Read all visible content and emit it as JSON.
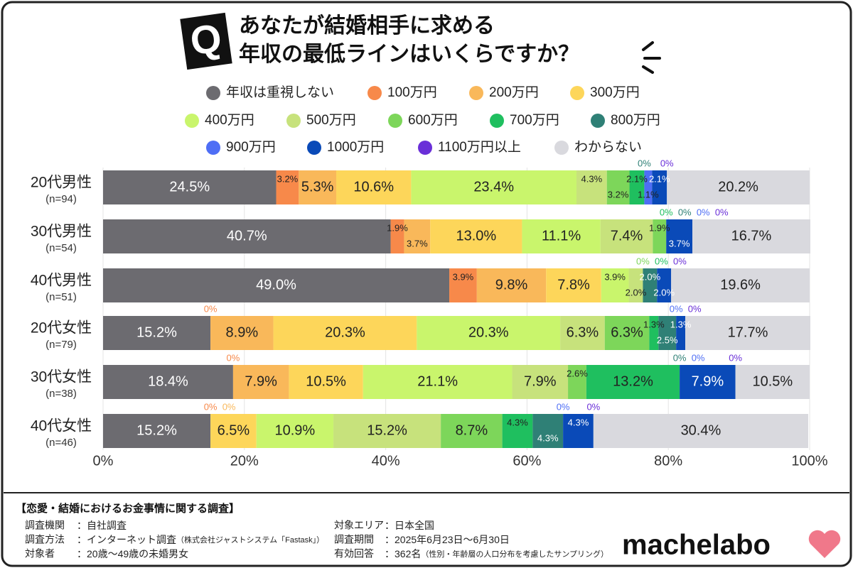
{
  "chart_data": {
    "type": "stacked-bar",
    "orientation": "horizontal",
    "badge": "Q",
    "title": [
      "あなたが結婚相手に求める",
      "年収の最低ラインはいくらですか？"
    ],
    "categories": [
      "20代男性",
      "30代男性",
      "40代男性",
      "20代女性",
      "30代女性",
      "40代女性"
    ],
    "category_notes": [
      "(n=94)",
      "(n=54)",
      "(n=51)",
      "(n=79)",
      "(n=38)",
      "(n=46)"
    ],
    "xlim": [
      0,
      100
    ],
    "xticks": [
      {
        "value": 0,
        "label": "0%"
      },
      {
        "value": 20,
        "label": "20%"
      },
      {
        "value": 40,
        "label": "40%"
      },
      {
        "value": 60,
        "label": "60%"
      },
      {
        "value": 80,
        "label": "80%"
      },
      {
        "value": 100,
        "label": "100%"
      }
    ],
    "grid": true,
    "series": [
      {
        "name": "年収は重視しない",
        "color": "#6c6b70",
        "values": [
          24.5,
          40.7,
          49.0,
          15.2,
          18.4,
          15.2
        ],
        "value_labels": [
          "24.5%",
          "40.7%",
          "49.0%",
          "15.2%",
          "18.4%",
          "15.2%"
        ]
      },
      {
        "name": "100万円",
        "color": "#f7894a",
        "values": [
          3.2,
          1.9,
          3.9,
          0,
          0,
          0
        ],
        "value_labels": [
          "3.2%",
          "1.9%",
          "3.9%",
          "0%",
          "0%",
          "0%"
        ]
      },
      {
        "name": "200万円",
        "color": "#f9b85a",
        "values": [
          5.3,
          3.7,
          9.8,
          8.9,
          7.9,
          0
        ],
        "value_labels": [
          "5.3%",
          "3.7%",
          "9.8%",
          "8.9%",
          "7.9%",
          "0%"
        ]
      },
      {
        "name": "300万円",
        "color": "#fdd65a",
        "values": [
          10.6,
          13.0,
          7.8,
          20.3,
          10.5,
          6.5
        ],
        "value_labels": [
          "10.6%",
          "13.0%",
          "7.8%",
          "20.3%",
          "10.5%",
          "6.5%"
        ]
      },
      {
        "name": "400万円",
        "color": "#c9f56c",
        "values": [
          23.4,
          11.1,
          3.9,
          20.3,
          21.1,
          10.9
        ],
        "value_labels": [
          "23.4%",
          "11.1%",
          "3.9%",
          "20.3%",
          "21.1%",
          "10.9%"
        ]
      },
      {
        "name": "500万円",
        "color": "#c7e27c",
        "values": [
          4.3,
          7.4,
          2.0,
          6.3,
          7.9,
          15.2
        ],
        "value_labels": [
          "4.3%",
          "7.4%",
          "2.0%",
          "6.3%",
          "7.9%",
          "15.2%"
        ]
      },
      {
        "name": "600万円",
        "color": "#7dd65a",
        "values": [
          3.2,
          1.9,
          0,
          6.3,
          2.6,
          8.7
        ],
        "value_labels": [
          "3.2%",
          "1.9%",
          "0%",
          "6.3%",
          "2.6%",
          "8.7%"
        ]
      },
      {
        "name": "700万円",
        "color": "#1fbf5f",
        "values": [
          2.1,
          0,
          0,
          1.3,
          13.2,
          4.3
        ],
        "value_labels": [
          "2.1%",
          "0%",
          "0%",
          "1.3%",
          "13.2%",
          "4.3%"
        ]
      },
      {
        "name": "800万円",
        "color": "#2f8076",
        "values": [
          0,
          0,
          2.0,
          2.5,
          0,
          4.3
        ],
        "value_labels": [
          "0%",
          "0%",
          "2.0%",
          "2.5%",
          "0%",
          "4.3%"
        ]
      },
      {
        "name": "900万円",
        "color": "#4e6ef5",
        "values": [
          1.1,
          0,
          0,
          0,
          0,
          0
        ],
        "value_labels": [
          "1.1%",
          "0%",
          null,
          "0%",
          "0%",
          "0%"
        ]
      },
      {
        "name": "1000万円",
        "color": "#0a4ab8",
        "values": [
          2.1,
          3.7,
          2.0,
          1.3,
          7.9,
          4.3
        ],
        "value_labels": [
          "2.1%",
          "3.7%",
          "2.0%",
          "1.3%",
          "7.9%",
          "4.3%"
        ]
      },
      {
        "name": "1100万円以上",
        "color": "#6a2fd8",
        "values": [
          0,
          0,
          0,
          0,
          0,
          0
        ],
        "value_labels": [
          "0%",
          "0%",
          "0%",
          "0%",
          "0%",
          "0%"
        ]
      },
      {
        "name": "わからない",
        "color": "#d9d9de",
        "values": [
          20.2,
          16.7,
          19.6,
          17.7,
          10.5,
          30.4
        ],
        "value_labels": [
          "20.2%",
          "16.7%",
          "19.6%",
          "17.7%",
          "10.5%",
          "30.4%"
        ]
      }
    ]
  },
  "survey": {
    "title": "【恋愛・結婚におけるお金事情に関する調査】",
    "left": [
      {
        "label": "調査機関",
        "value": "：自社調査",
        "note": ""
      },
      {
        "label": "調査方法",
        "value": "：インターネット調査",
        "note": "（株式会社ジャストシステム「Fastask」）"
      },
      {
        "label": "対象者",
        "value": "：20歳～49歳の未婚男女",
        "note": ""
      }
    ],
    "right": [
      {
        "label": "対象エリア",
        "value": "：日本全国",
        "note": ""
      },
      {
        "label": "調査期間",
        "value": "：2025年6月23日～6月30日",
        "note": ""
      },
      {
        "label": "有効回答",
        "value": "：362名",
        "note": "（性別・年齢層の人口分布を考慮したサンプリング）"
      }
    ]
  },
  "logo": "machelabo"
}
